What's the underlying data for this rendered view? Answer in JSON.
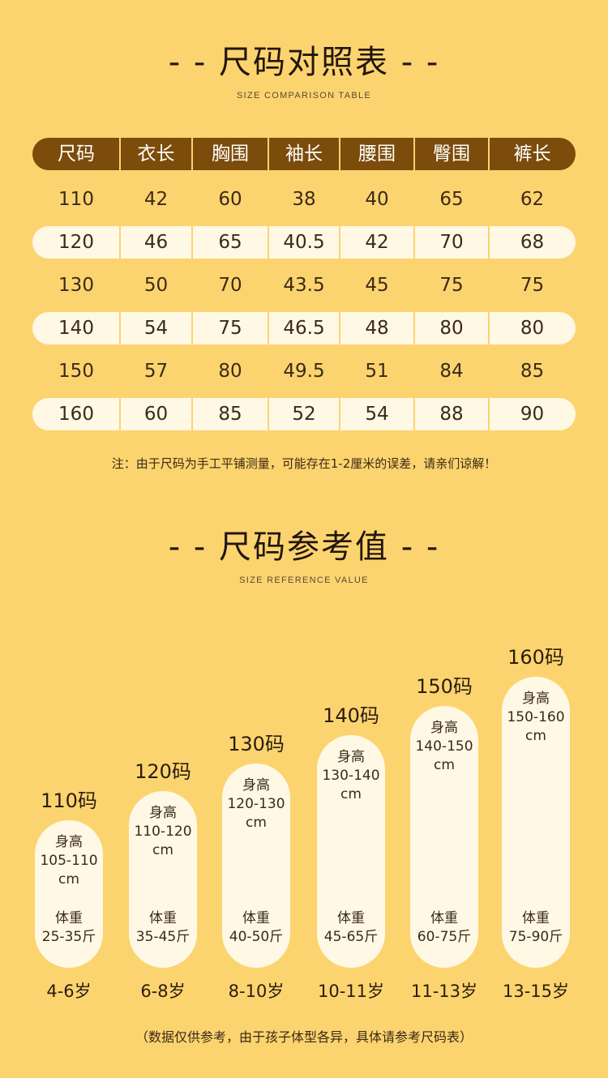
{
  "comparison": {
    "title": "- - 尺码对照表 - -",
    "subtitle": "SIZE COMPARISON TABLE",
    "headers": [
      "尺码",
      "衣长",
      "胸围",
      "袖长",
      "腰围",
      "臀围",
      "裤长"
    ],
    "rows": [
      [
        "110",
        "42",
        "60",
        "38",
        "40",
        "65",
        "62"
      ],
      [
        "120",
        "46",
        "65",
        "40.5",
        "42",
        "70",
        "68"
      ],
      [
        "130",
        "50",
        "70",
        "43.5",
        "45",
        "75",
        "75"
      ],
      [
        "140",
        "54",
        "75",
        "46.5",
        "48",
        "80",
        "80"
      ],
      [
        "150",
        "57",
        "80",
        "49.5",
        "51",
        "84",
        "85"
      ],
      [
        "160",
        "60",
        "85",
        "52",
        "54",
        "88",
        "90"
      ]
    ],
    "note": "注：由于尺码为手工平铺测量，可能存在1-2厘米的误差，请亲们谅解！"
  },
  "reference": {
    "title": "- - 尺码参考值 - -",
    "subtitle": "SIZE REFERENCE VALUE",
    "height_label": "身高",
    "weight_label": "体重",
    "items": [
      {
        "size": "110码",
        "height": "105-110",
        "unit": "cm",
        "weight": "25-35斤",
        "age": "4-6岁"
      },
      {
        "size": "120码",
        "height": "110-120",
        "unit": "cm",
        "weight": "35-45斤",
        "age": "6-8岁"
      },
      {
        "size": "130码",
        "height": "120-130",
        "unit": "cm",
        "weight": "40-50斤",
        "age": "8-10岁"
      },
      {
        "size": "140码",
        "height": "130-140",
        "unit": "cm",
        "weight": "45-65斤",
        "age": "10-11岁"
      },
      {
        "size": "150码",
        "height": "140-150",
        "unit": "cm",
        "weight": "60-75斤",
        "age": "11-13岁"
      },
      {
        "size": "160码",
        "height": "150-160",
        "unit": "cm",
        "weight": "75-90斤",
        "age": "13-15岁"
      }
    ],
    "footer": "（数据仅供参考，由于孩子体型各异，具体请参考尺码表）"
  }
}
